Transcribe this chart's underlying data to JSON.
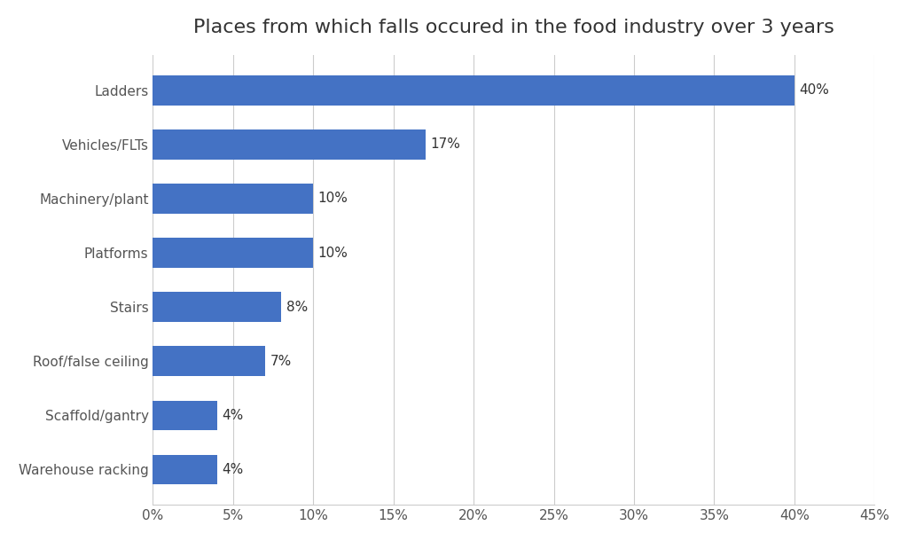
{
  "title": "Places from which falls occured in the food industry over 3 years",
  "categories": [
    "Ladders",
    "Vehicles/FLTs",
    "Machinery/plant",
    "Platforms",
    "Stairs",
    "Roof/false ceiling",
    "Scaffold/gantry",
    "Warehouse racking"
  ],
  "values": [
    40,
    17,
    10,
    10,
    8,
    7,
    4,
    4
  ],
  "bar_color": "#4472C4",
  "xlim": [
    0,
    45
  ],
  "xtick_values": [
    0,
    5,
    10,
    15,
    20,
    25,
    30,
    35,
    40,
    45
  ],
  "background_color": "#ffffff",
  "grid_color": "#cccccc",
  "title_fontsize": 16,
  "label_fontsize": 11,
  "tick_fontsize": 11,
  "bar_label_fontsize": 11
}
